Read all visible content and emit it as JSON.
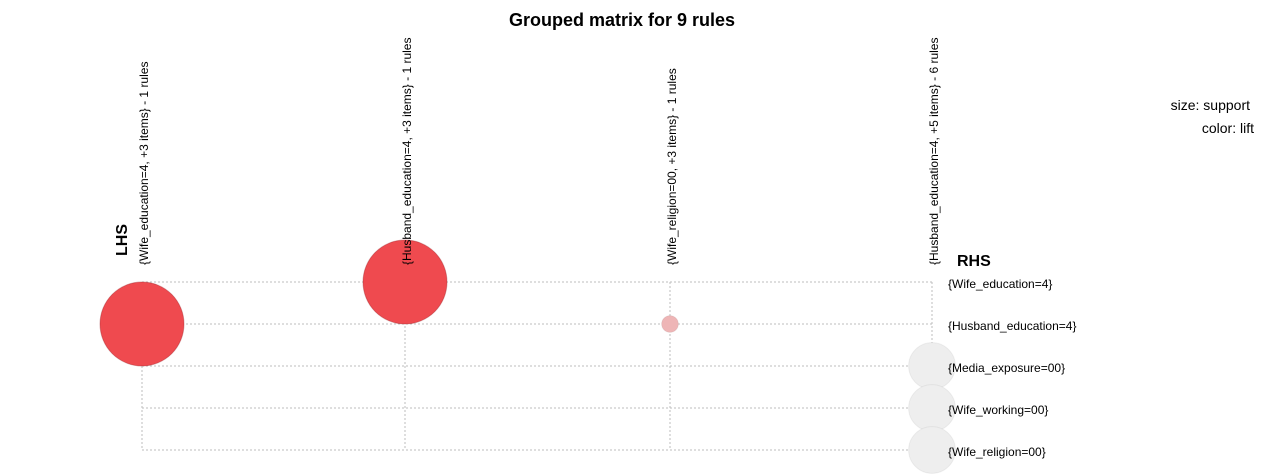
{
  "chart_data": {
    "type": "scatter",
    "title": "Grouped matrix for 9 rules",
    "lhs_label": "LHS",
    "rhs_label": "RHS",
    "legend": {
      "size_label": "size: support",
      "color_label": "color: lift",
      "placement": "top-right"
    },
    "lhs_groups": [
      "{Wife_education=4, +3 items} - 1 rules",
      "{Husband_education=4, +3 items} - 1 rules",
      "{Wife_religion=00, +3 items} - 1 rules",
      "{Husband_education=4, +5 items} - 6 rules"
    ],
    "rhs_items": [
      "{Wife_education=4}",
      "{Husband_education=4}",
      "{Media_exposure=00}",
      "{Wife_working=00}",
      "{Wife_religion=00}"
    ],
    "points": [
      {
        "lhs": 0,
        "rhs": 1,
        "support": 1.0,
        "lift": 1.0
      },
      {
        "lhs": 1,
        "rhs": 0,
        "support": 1.0,
        "lift": 1.0
      },
      {
        "lhs": 2,
        "rhs": 1,
        "support": 0.04,
        "lift": 0.35
      },
      {
        "lhs": 3,
        "rhs": 2,
        "support": 0.31,
        "lift": 0.0
      },
      {
        "lhs": 3,
        "rhs": 3,
        "support": 0.31,
        "lift": 0.0
      },
      {
        "lhs": 3,
        "rhs": 4,
        "support": 0.31,
        "lift": 0.0
      }
    ],
    "colors": {
      "high": "#ef4a4f",
      "low": "#eeeeee"
    },
    "grid": true
  }
}
